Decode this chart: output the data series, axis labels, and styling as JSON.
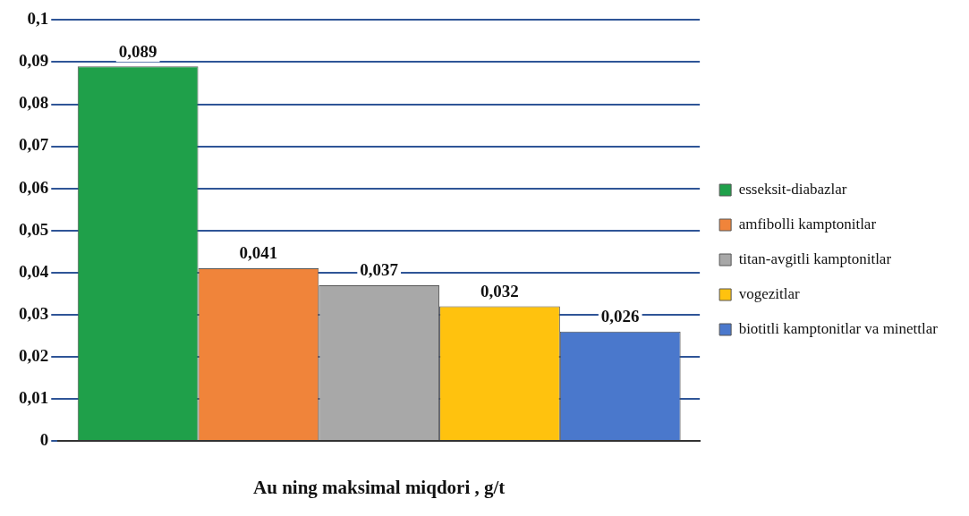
{
  "chart_data": {
    "type": "bar",
    "xlabel": "Au ning maksimal miqdori , g/t",
    "categories": [
      null
    ],
    "series": [
      {
        "name": "esseksit-diabazlar",
        "color": "#1fa04a",
        "values": [
          0.089
        ],
        "value_labels": [
          "0,089"
        ]
      },
      {
        "name": "amfibolli kamptonitlar",
        "color": "#f0843a",
        "values": [
          0.041
        ],
        "value_labels": [
          "0,041"
        ]
      },
      {
        "name": "titan-avgitli kamptonitlar",
        "color": "#a8a8a8",
        "values": [
          0.037
        ],
        "value_labels": [
          "0,037"
        ]
      },
      {
        "name": "vogezitlar",
        "color": "#ffc20e",
        "values": [
          0.032
        ],
        "value_labels": [
          "0,032"
        ]
      },
      {
        "name": "biotitli kamptonitlar va minettlar",
        "color": "#4a78cc",
        "values": [
          0.026
        ],
        "value_labels": [
          "0,026"
        ]
      }
    ],
    "ylim": [
      0,
      0.1
    ],
    "yticks": [
      {
        "value": 0,
        "label": "0"
      },
      {
        "value": 0.01,
        "label": "0,01"
      },
      {
        "value": 0.02,
        "label": "0,02"
      },
      {
        "value": 0.03,
        "label": "0,03"
      },
      {
        "value": 0.04,
        "label": "0,04"
      },
      {
        "value": 0.05,
        "label": "0,05"
      },
      {
        "value": 0.06,
        "label": "0,06"
      },
      {
        "value": 0.07,
        "label": "0,07"
      },
      {
        "value": 0.08,
        "label": "0,08"
      },
      {
        "value": 0.09,
        "label": "0,09"
      },
      {
        "value": 0.1,
        "label": "0,1"
      }
    ],
    "grid": "y",
    "legend": "right"
  }
}
